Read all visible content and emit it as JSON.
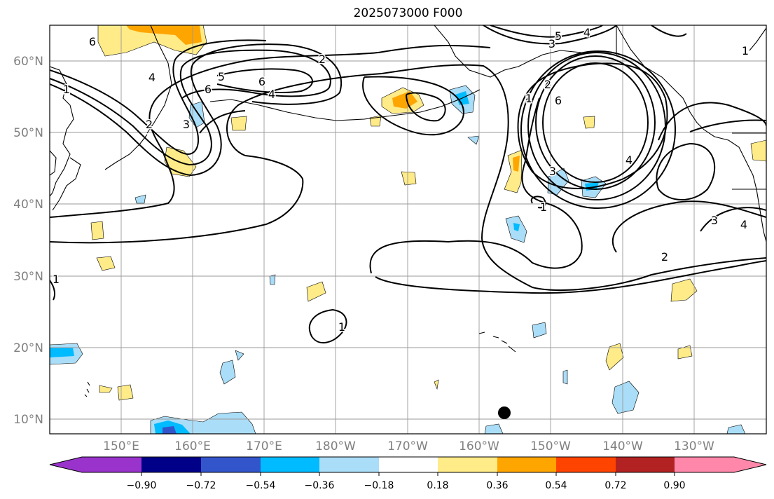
{
  "title": "2025073000 F000",
  "axes": {
    "x_ticks": [
      "150°E",
      "160°E",
      "170°E",
      "180°W",
      "170°W",
      "160°W",
      "150°W",
      "140°W",
      "130°W"
    ],
    "y_ticks": [
      "60°N",
      "50°N",
      "40°N",
      "30°N",
      "20°N",
      "10°N"
    ],
    "lon_range": [
      140,
      240
    ],
    "lat_range": [
      8,
      65
    ]
  },
  "colorbar": {
    "ticks": [
      "−0.90",
      "−0.72",
      "−0.54",
      "−0.36",
      "−0.18",
      "0.18",
      "0.36",
      "0.54",
      "0.72",
      "0.90"
    ],
    "colors": [
      "#9933cc",
      "#000088",
      "#3355cc",
      "#00bbff",
      "#aaddf7",
      "#ffffff",
      "#ffeb88",
      "#ffa500",
      "#ff4400",
      "#b22222",
      "#ff88aa"
    ]
  },
  "contour_labels": [
    "6",
    "2",
    "5",
    "6",
    "4",
    "4",
    "1",
    "2",
    "6",
    "3",
    "5",
    "4",
    "3",
    "1",
    "2",
    "6",
    "4",
    "3",
    "1",
    "1",
    "2",
    "3",
    "4",
    "1",
    "1"
  ],
  "marker": {
    "label": "black-dot",
    "lon": 203.8,
    "lat": 10.9
  }
}
